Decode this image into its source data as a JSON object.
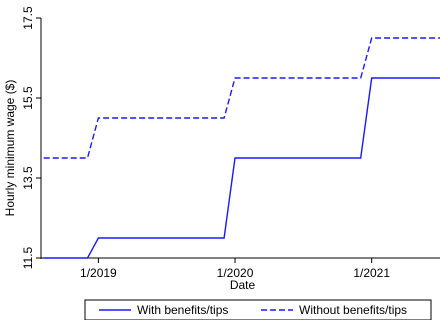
{
  "chart_data": {
    "type": "line",
    "xlabel": "Date",
    "ylabel": "Hourly minimum wage ($)",
    "x_ticks": [
      {
        "x": 2019.0,
        "label": "1/2019"
      },
      {
        "x": 2020.0,
        "label": "1/2020"
      },
      {
        "x": 2021.0,
        "label": "1/2021"
      }
    ],
    "y_ticks": [
      {
        "y": 11.5,
        "label": "11.5"
      },
      {
        "y": 13.5,
        "label": "13.5"
      },
      {
        "y": 15.5,
        "label": "15.5"
      },
      {
        "y": 17.5,
        "label": "17.5"
      }
    ],
    "xlim": [
      2018.58,
      2021.5
    ],
    "ylim": [
      11.5,
      17.5
    ],
    "grid": false,
    "legend_position": "bottom",
    "series": [
      {
        "name": "With benefits/tips",
        "color": "#1a1aff",
        "dash": "solid",
        "x": [
          2018.6,
          2018.92,
          2019.0,
          2019.92,
          2020.0,
          2020.92,
          2021.0,
          2021.5
        ],
        "y": [
          11.5,
          11.5,
          12.0,
          12.0,
          14.0,
          14.0,
          16.0,
          16.0
        ]
      },
      {
        "name": "Without benefits/tips",
        "color": "#1a1aff",
        "dash": "dashed",
        "x": [
          2018.6,
          2018.92,
          2019.0,
          2019.92,
          2020.0,
          2020.92,
          2021.0,
          2021.5
        ],
        "y": [
          14.0,
          14.0,
          15.0,
          15.0,
          16.0,
          16.0,
          17.0,
          17.0
        ]
      }
    ]
  }
}
